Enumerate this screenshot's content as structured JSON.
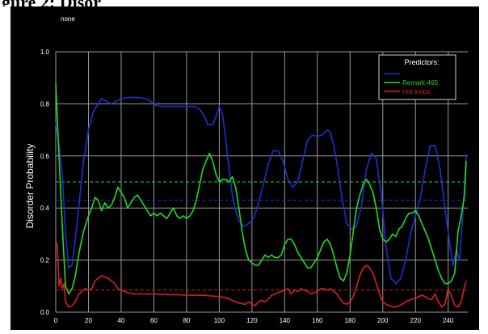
{
  "heading": "gure 2: Disor",
  "chart_data": {
    "type": "line",
    "title": "none",
    "xlabel": "",
    "ylabel": "Disorder Probability",
    "xlim": [
      0,
      252
    ],
    "ylim": [
      0,
      1.0
    ],
    "xticks": [
      "0",
      "20",
      "40",
      "60",
      "80",
      "100",
      "120",
      "140",
      "160",
      "180",
      "200",
      "220",
      "240"
    ],
    "yticks": [
      "0.0",
      "0.2",
      "0.4",
      "0.6",
      "0.8",
      "1.0"
    ],
    "grid": true,
    "legend_title": "Predictors:",
    "legend_position": "top-right",
    "series": [
      {
        "name": "",
        "color": "#1f2fd0",
        "threshold": 0.43,
        "points": [
          [
            0,
            0.73
          ],
          [
            2,
            0.64
          ],
          [
            4,
            0.53
          ],
          [
            6,
            0.3
          ],
          [
            8,
            0.17
          ],
          [
            10,
            0.18
          ],
          [
            12,
            0.28
          ],
          [
            14,
            0.4
          ],
          [
            17,
            0.58
          ],
          [
            20,
            0.7
          ],
          [
            23,
            0.77
          ],
          [
            26,
            0.8
          ],
          [
            28,
            0.82
          ],
          [
            31,
            0.81
          ],
          [
            34,
            0.8
          ],
          [
            37,
            0.81
          ],
          [
            40,
            0.82
          ],
          [
            45,
            0.825
          ],
          [
            50,
            0.825
          ],
          [
            55,
            0.82
          ],
          [
            58,
            0.81
          ],
          [
            61,
            0.795
          ],
          [
            65,
            0.79
          ],
          [
            70,
            0.79
          ],
          [
            75,
            0.79
          ],
          [
            80,
            0.79
          ],
          [
            85,
            0.79
          ],
          [
            88,
            0.78
          ],
          [
            91,
            0.75
          ],
          [
            93,
            0.72
          ],
          [
            96,
            0.72
          ],
          [
            98,
            0.75
          ],
          [
            100,
            0.79
          ],
          [
            102,
            0.76
          ],
          [
            104,
            0.66
          ],
          [
            106,
            0.55
          ],
          [
            108,
            0.45
          ],
          [
            110,
            0.39
          ],
          [
            112,
            0.35
          ],
          [
            115,
            0.33
          ],
          [
            118,
            0.34
          ],
          [
            121,
            0.36
          ],
          [
            124,
            0.42
          ],
          [
            127,
            0.49
          ],
          [
            130,
            0.57
          ],
          [
            133,
            0.62
          ],
          [
            136,
            0.62
          ],
          [
            139,
            0.58
          ],
          [
            142,
            0.51
          ],
          [
            145,
            0.48
          ],
          [
            148,
            0.5
          ],
          [
            151,
            0.58
          ],
          [
            154,
            0.66
          ],
          [
            157,
            0.68
          ],
          [
            160,
            0.675
          ],
          [
            163,
            0.68
          ],
          [
            166,
            0.7
          ],
          [
            168,
            0.69
          ],
          [
            170,
            0.64
          ],
          [
            172,
            0.57
          ],
          [
            175,
            0.44
          ],
          [
            178,
            0.34
          ],
          [
            181,
            0.32
          ],
          [
            184,
            0.33
          ],
          [
            187,
            0.41
          ],
          [
            190,
            0.55
          ],
          [
            193,
            0.61
          ],
          [
            196,
            0.59
          ],
          [
            199,
            0.46
          ],
          [
            202,
            0.25
          ],
          [
            205,
            0.13
          ],
          [
            208,
            0.11
          ],
          [
            211,
            0.13
          ],
          [
            214,
            0.2
          ],
          [
            217,
            0.3
          ],
          [
            220,
            0.37
          ],
          [
            223,
            0.44
          ],
          [
            226,
            0.55
          ],
          [
            229,
            0.64
          ],
          [
            232,
            0.64
          ],
          [
            235,
            0.55
          ],
          [
            238,
            0.4
          ],
          [
            241,
            0.26
          ],
          [
            243,
            0.18
          ],
          [
            245,
            0.24
          ],
          [
            247,
            0.2
          ],
          [
            249,
            0.38
          ],
          [
            251,
            0.6
          ]
        ]
      },
      {
        "name": "Remark-465",
        "color": "#1fdc1f",
        "threshold": 0.5,
        "points": [
          [
            0,
            0.88
          ],
          [
            2,
            0.6
          ],
          [
            4,
            0.33
          ],
          [
            6,
            0.1
          ],
          [
            8,
            0.07
          ],
          [
            10,
            0.09
          ],
          [
            12,
            0.14
          ],
          [
            14,
            0.22
          ],
          [
            17,
            0.31
          ],
          [
            20,
            0.37
          ],
          [
            22,
            0.4
          ],
          [
            24,
            0.44
          ],
          [
            26,
            0.43
          ],
          [
            28,
            0.39
          ],
          [
            30,
            0.42
          ],
          [
            32,
            0.4
          ],
          [
            34,
            0.41
          ],
          [
            36,
            0.44
          ],
          [
            38,
            0.48
          ],
          [
            40,
            0.46
          ],
          [
            42,
            0.44
          ],
          [
            44,
            0.4
          ],
          [
            46,
            0.42
          ],
          [
            48,
            0.44
          ],
          [
            50,
            0.45
          ],
          [
            52,
            0.43
          ],
          [
            54,
            0.41
          ],
          [
            56,
            0.39
          ],
          [
            58,
            0.37
          ],
          [
            60,
            0.38
          ],
          [
            62,
            0.37
          ],
          [
            64,
            0.38
          ],
          [
            66,
            0.37
          ],
          [
            68,
            0.36
          ],
          [
            70,
            0.38
          ],
          [
            72,
            0.4
          ],
          [
            74,
            0.37
          ],
          [
            76,
            0.36
          ],
          [
            78,
            0.37
          ],
          [
            80,
            0.36
          ],
          [
            82,
            0.37
          ],
          [
            84,
            0.39
          ],
          [
            86,
            0.43
          ],
          [
            88,
            0.49
          ],
          [
            90,
            0.55
          ],
          [
            92,
            0.58
          ],
          [
            94,
            0.61
          ],
          [
            96,
            0.58
          ],
          [
            98,
            0.53
          ],
          [
            100,
            0.5
          ],
          [
            102,
            0.51
          ],
          [
            104,
            0.51
          ],
          [
            106,
            0.5
          ],
          [
            108,
            0.52
          ],
          [
            110,
            0.48
          ],
          [
            112,
            0.4
          ],
          [
            114,
            0.31
          ],
          [
            116,
            0.24
          ],
          [
            118,
            0.2
          ],
          [
            120,
            0.19
          ],
          [
            122,
            0.18
          ],
          [
            124,
            0.18
          ],
          [
            126,
            0.2
          ],
          [
            128,
            0.22
          ],
          [
            130,
            0.21
          ],
          [
            132,
            0.22
          ],
          [
            134,
            0.21
          ],
          [
            136,
            0.21
          ],
          [
            138,
            0.22
          ],
          [
            140,
            0.26
          ],
          [
            142,
            0.28
          ],
          [
            144,
            0.28
          ],
          [
            146,
            0.26
          ],
          [
            148,
            0.23
          ],
          [
            150,
            0.21
          ],
          [
            152,
            0.19
          ],
          [
            154,
            0.17
          ],
          [
            156,
            0.17
          ],
          [
            158,
            0.19
          ],
          [
            160,
            0.21
          ],
          [
            162,
            0.24
          ],
          [
            164,
            0.27
          ],
          [
            166,
            0.28
          ],
          [
            168,
            0.26
          ],
          [
            170,
            0.22
          ],
          [
            172,
            0.17
          ],
          [
            174,
            0.13
          ],
          [
            176,
            0.12
          ],
          [
            178,
            0.15
          ],
          [
            180,
            0.22
          ],
          [
            182,
            0.31
          ],
          [
            184,
            0.4
          ],
          [
            186,
            0.45
          ],
          [
            188,
            0.49
          ],
          [
            190,
            0.51
          ],
          [
            192,
            0.49
          ],
          [
            194,
            0.46
          ],
          [
            196,
            0.4
          ],
          [
            198,
            0.32
          ],
          [
            200,
            0.28
          ],
          [
            202,
            0.27
          ],
          [
            204,
            0.28
          ],
          [
            206,
            0.3
          ],
          [
            208,
            0.29
          ],
          [
            210,
            0.32
          ],
          [
            212,
            0.33
          ],
          [
            214,
            0.36
          ],
          [
            216,
            0.38
          ],
          [
            218,
            0.38
          ],
          [
            220,
            0.39
          ],
          [
            222,
            0.37
          ],
          [
            224,
            0.34
          ],
          [
            226,
            0.31
          ],
          [
            228,
            0.28
          ],
          [
            230,
            0.24
          ],
          [
            232,
            0.2
          ],
          [
            234,
            0.16
          ],
          [
            236,
            0.13
          ],
          [
            238,
            0.11
          ],
          [
            240,
            0.11
          ],
          [
            242,
            0.12
          ],
          [
            244,
            0.15
          ],
          [
            246,
            0.31
          ],
          [
            248,
            0.37
          ],
          [
            250,
            0.45
          ],
          [
            251,
            0.58
          ]
        ]
      },
      {
        "name": "Hot-loops",
        "color": "#d82020",
        "threshold": 0.085,
        "points": [
          [
            0,
            0.27
          ],
          [
            1,
            0.26
          ],
          [
            2,
            0.1
          ],
          [
            3,
            0.13
          ],
          [
            4,
            0.09
          ],
          [
            5,
            0.11
          ],
          [
            6,
            0.04
          ],
          [
            8,
            0.02
          ],
          [
            10,
            0.025
          ],
          [
            12,
            0.04
          ],
          [
            14,
            0.07
          ],
          [
            16,
            0.08
          ],
          [
            18,
            0.09
          ],
          [
            20,
            0.085
          ],
          [
            22,
            0.09
          ],
          [
            24,
            0.12
          ],
          [
            26,
            0.13
          ],
          [
            28,
            0.14
          ],
          [
            30,
            0.135
          ],
          [
            32,
            0.13
          ],
          [
            34,
            0.12
          ],
          [
            36,
            0.11
          ],
          [
            38,
            0.09
          ],
          [
            40,
            0.085
          ],
          [
            44,
            0.075
          ],
          [
            48,
            0.07
          ],
          [
            55,
            0.07
          ],
          [
            60,
            0.07
          ],
          [
            65,
            0.068
          ],
          [
            70,
            0.067
          ],
          [
            75,
            0.067
          ],
          [
            80,
            0.065
          ],
          [
            85,
            0.065
          ],
          [
            90,
            0.065
          ],
          [
            95,
            0.062
          ],
          [
            100,
            0.06
          ],
          [
            104,
            0.055
          ],
          [
            108,
            0.045
          ],
          [
            112,
            0.035
          ],
          [
            116,
            0.03
          ],
          [
            118,
            0.04
          ],
          [
            120,
            0.03
          ],
          [
            122,
            0.025
          ],
          [
            124,
            0.04
          ],
          [
            126,
            0.045
          ],
          [
            128,
            0.04
          ],
          [
            130,
            0.05
          ],
          [
            132,
            0.065
          ],
          [
            134,
            0.07
          ],
          [
            136,
            0.075
          ],
          [
            138,
            0.08
          ],
          [
            140,
            0.085
          ],
          [
            142,
            0.09
          ],
          [
            144,
            0.07
          ],
          [
            146,
            0.085
          ],
          [
            148,
            0.08
          ],
          [
            150,
            0.09
          ],
          [
            152,
            0.085
          ],
          [
            154,
            0.08
          ],
          [
            156,
            0.07
          ],
          [
            158,
            0.075
          ],
          [
            160,
            0.08
          ],
          [
            162,
            0.09
          ],
          [
            164,
            0.09
          ],
          [
            166,
            0.085
          ],
          [
            168,
            0.09
          ],
          [
            170,
            0.08
          ],
          [
            172,
            0.07
          ],
          [
            174,
            0.05
          ],
          [
            176,
            0.035
          ],
          [
            178,
            0.03
          ],
          [
            180,
            0.04
          ],
          [
            182,
            0.06
          ],
          [
            184,
            0.1
          ],
          [
            186,
            0.14
          ],
          [
            188,
            0.17
          ],
          [
            190,
            0.18
          ],
          [
            192,
            0.17
          ],
          [
            194,
            0.15
          ],
          [
            196,
            0.11
          ],
          [
            198,
            0.07
          ],
          [
            200,
            0.04
          ],
          [
            202,
            0.03
          ],
          [
            204,
            0.025
          ],
          [
            206,
            0.02
          ],
          [
            208,
            0.02
          ],
          [
            210,
            0.025
          ],
          [
            212,
            0.03
          ],
          [
            214,
            0.04
          ],
          [
            216,
            0.045
          ],
          [
            218,
            0.05
          ],
          [
            220,
            0.055
          ],
          [
            222,
            0.06
          ],
          [
            224,
            0.065
          ],
          [
            226,
            0.06
          ],
          [
            228,
            0.05
          ],
          [
            230,
            0.05
          ],
          [
            232,
            0.07
          ],
          [
            234,
            0.04
          ],
          [
            236,
            0.02
          ],
          [
            238,
            0.03
          ],
          [
            240,
            0.09
          ],
          [
            242,
            0.06
          ],
          [
            244,
            0.025
          ],
          [
            246,
            0.02
          ],
          [
            248,
            0.04
          ],
          [
            250,
            0.1
          ],
          [
            251,
            0.12
          ]
        ]
      }
    ]
  }
}
